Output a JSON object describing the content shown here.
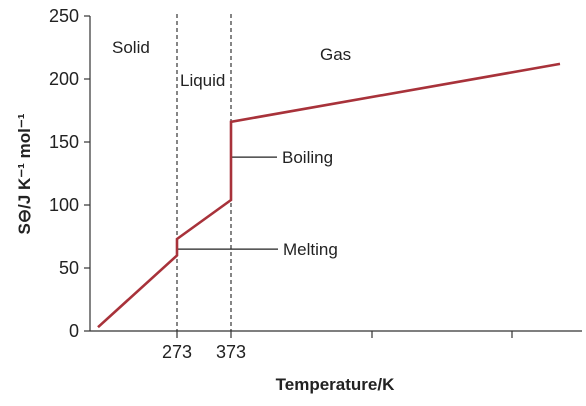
{
  "chart_data": {
    "type": "line",
    "xlabel": "Temperature/K",
    "ylabel": "S⊖/J K⁻¹ mol⁻¹",
    "ylim": [
      0,
      250
    ],
    "yticks": [
      0,
      50,
      100,
      150,
      200,
      250
    ],
    "xticks": [
      "273",
      "373",
      "",
      ""
    ],
    "grid": false,
    "series": [
      {
        "color": "#a8323a",
        "points": [
          {
            "x": 0,
            "y": 3
          },
          {
            "x": 273,
            "y": 60
          },
          {
            "x": 273,
            "y": 73
          },
          {
            "x": 373,
            "y": 104
          },
          {
            "x": 373,
            "y": 166
          },
          {
            "x": 1200,
            "y": 212
          }
        ]
      }
    ],
    "phase_boundaries": [
      273,
      373
    ],
    "regions": [
      {
        "label": "Solid"
      },
      {
        "label": "Liquid"
      },
      {
        "label": "Gas"
      }
    ],
    "annotations": [
      {
        "label": "Melting",
        "y": 65
      },
      {
        "label": "Boiling",
        "y": 138
      }
    ]
  }
}
